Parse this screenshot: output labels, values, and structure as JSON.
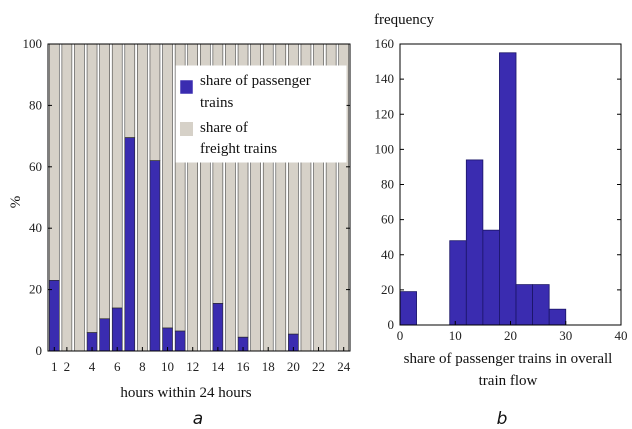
{
  "chart_data": [
    {
      "type": "bar",
      "stacked": true,
      "caption": "a",
      "categories": [
        "1",
        "2",
        "3",
        "4",
        "5",
        "6",
        "7",
        "8",
        "9",
        "10",
        "11",
        "12",
        "13",
        "14",
        "15",
        "16",
        "17",
        "18",
        "19",
        "20",
        "21",
        "22",
        "23",
        "24"
      ],
      "x_tick_labels": [
        "1",
        "2",
        "4",
        "6",
        "8",
        "10",
        "12",
        "14",
        "16",
        "18",
        "20",
        "22",
        "24"
      ],
      "series": [
        {
          "name": "share of passenger trains",
          "color": "#3a2cb0",
          "values": [
            23,
            0,
            0,
            6,
            10.5,
            14,
            69.5,
            0,
            62,
            7.5,
            6.5,
            0,
            0,
            15.5,
            0,
            4.5,
            0,
            0,
            0,
            5.5,
            0,
            0,
            0,
            0
          ]
        },
        {
          "name": "share of freight trains",
          "color": "#d6d1c8",
          "values": [
            77,
            100,
            100,
            94,
            89.5,
            86,
            30.5,
            100,
            38,
            92.5,
            93.5,
            100,
            100,
            84.5,
            100,
            95.5,
            100,
            100,
            100,
            94.5,
            100,
            100,
            100,
            100
          ]
        }
      ],
      "xlabel": "hours within 24 hours",
      "ylabel": "%",
      "ylim": [
        0,
        100
      ],
      "y_ticks": [
        "0",
        "20",
        "40",
        "60",
        "80",
        "100"
      ],
      "legend": "top-right"
    },
    {
      "type": "bar",
      "caption": "b",
      "bins": [
        [
          0,
          3
        ],
        [
          9,
          12
        ],
        [
          12,
          15
        ],
        [
          15,
          18
        ],
        [
          18,
          21
        ],
        [
          21,
          24
        ],
        [
          24,
          27
        ],
        [
          27,
          30
        ]
      ],
      "values": [
        19,
        48,
        94,
        54,
        155,
        23,
        23,
        9
      ],
      "color": "#3a2cb0",
      "xlabel": "share of passenger trains in overall train flow",
      "xlabel_lines": [
        "share of passenger trains in overall",
        "train flow"
      ],
      "ylabel": "frequency",
      "xlim": [
        0,
        40
      ],
      "ylim": [
        0,
        160
      ],
      "x_ticks": [
        "0",
        "10",
        "20",
        "30",
        "40"
      ],
      "y_ticks": [
        "0",
        "20",
        "40",
        "60",
        "80",
        "100",
        "120",
        "140",
        "160"
      ]
    }
  ]
}
